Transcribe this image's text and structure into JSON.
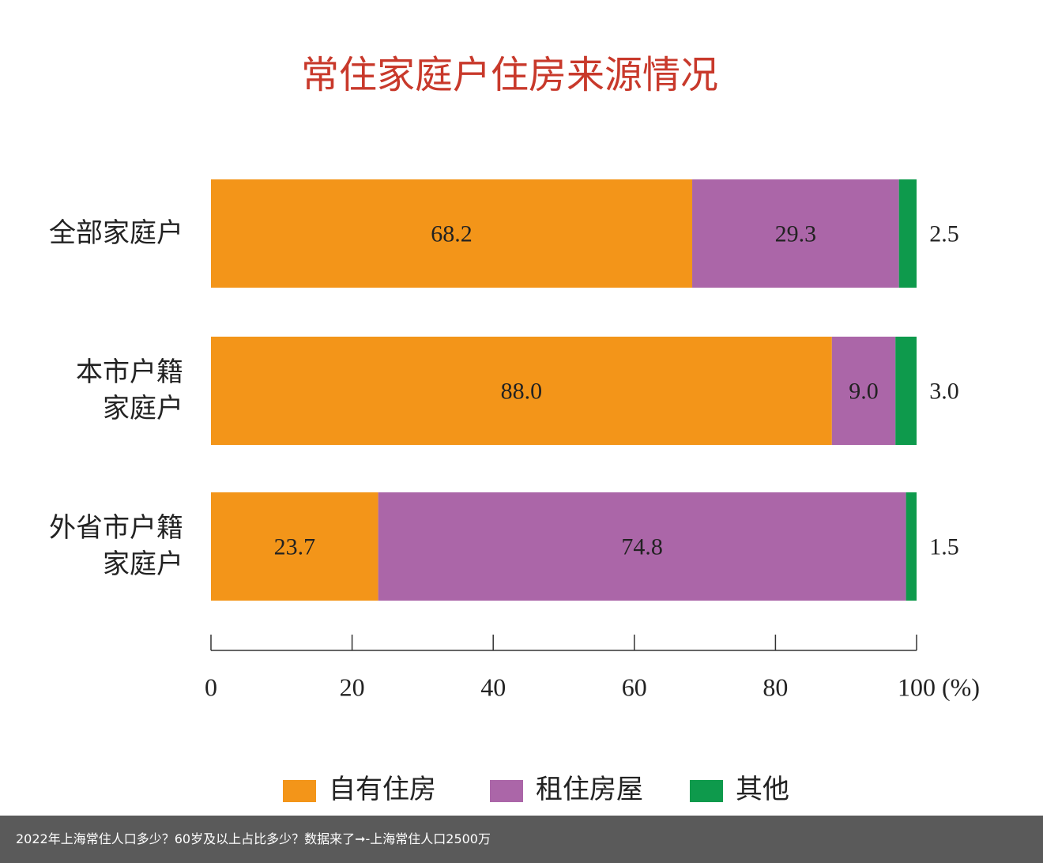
{
  "chart_data": {
    "type": "stacked-barh",
    "title": "常住家庭户住房来源情况",
    "categories": [
      "全部家庭户",
      "本市户籍\n家庭户",
      "外省市户籍\n家庭户"
    ],
    "series": [
      {
        "name": "自有住房",
        "color": "#f39519",
        "values": [
          68.2,
          88.0,
          23.7
        ],
        "value_labels": [
          "68.2",
          "88.0",
          "23.7"
        ]
      },
      {
        "name": "租住房屋",
        "color": "#ab66a8",
        "values": [
          29.3,
          9.0,
          74.8
        ],
        "value_labels": [
          "29.3",
          "9.0",
          "74.8"
        ]
      },
      {
        "name": "其他",
        "color": "#0e9a4c",
        "values": [
          2.5,
          3.0,
          1.5
        ],
        "value_labels": [
          "2.5",
          "3.0",
          "1.5"
        ]
      }
    ],
    "xlim": [
      0,
      100
    ],
    "xticks": [
      0,
      20,
      40,
      60,
      80,
      {
        "value": 100,
        "label": "100 (%)"
      }
    ]
  },
  "caption": "2022年上海常住人口多少？60岁及以上占比多少？数据来了➞-上海常住人口2500万"
}
